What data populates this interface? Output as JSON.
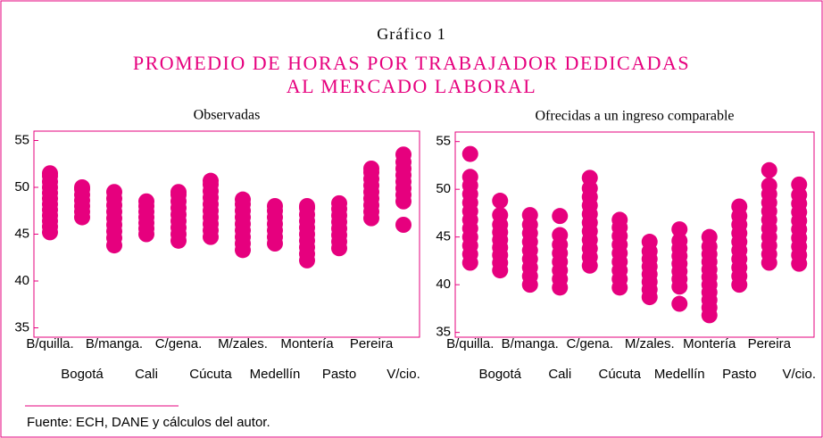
{
  "figure_label": "Gráfico 1",
  "title": [
    "PROMEDIO DE HORAS POR TRABAJADOR DEDICADAS",
    "AL MERCADO LABORAL"
  ],
  "source": "Fuente: ECH, DANE y cálculos del autor.",
  "chart_data": [
    {
      "type": "strip",
      "title": "Observadas",
      "color": "#e6007e",
      "categories": [
        "B/quilla.",
        "Bogotá",
        "B/manga.",
        "Cali",
        "C/gena.",
        "Cúcuta",
        "M/zales.",
        "Medellín",
        "Montería",
        "Pasto",
        "Pereira",
        "V/cio."
      ],
      "values": [
        [
          45.2,
          45.8,
          46.4,
          47,
          47.6,
          48.2,
          48.8,
          49.4,
          50,
          50.6,
          51.2,
          51.5
        ],
        [
          46.8,
          47.4,
          48,
          48.6,
          49.2,
          49.8,
          50
        ],
        [
          43.8,
          44.6,
          45.3,
          46,
          46.7,
          47.4,
          48.1,
          48.8,
          49.5
        ],
        [
          45,
          45.6,
          46.2,
          46.8,
          47.4,
          48,
          48.5
        ],
        [
          44.3,
          45,
          45.7,
          46.4,
          47.1,
          47.8,
          48.5,
          49.2,
          49.5
        ],
        [
          44.7,
          45.4,
          46.1,
          46.8,
          47.5,
          48.2,
          48.9,
          49.6,
          50.3,
          50.7
        ],
        [
          43.3,
          44,
          44.7,
          45.4,
          46.1,
          46.8,
          47.5,
          48.2,
          48.7
        ],
        [
          44,
          44.7,
          45.4,
          46.1,
          46.8,
          47.5,
          48
        ],
        [
          42.2,
          42.9,
          43.6,
          44.3,
          45,
          45.7,
          46.4,
          47.1,
          47.8,
          48
        ],
        [
          43.5,
          44.2,
          44.9,
          45.6,
          46.3,
          47,
          47.7,
          48.3
        ],
        [
          46.7,
          47.4,
          48.1,
          48.8,
          49.5,
          50.2,
          50.9,
          51.6,
          52
        ],
        [
          46,
          48.5,
          49.2,
          49.9,
          50.6,
          51.3,
          52,
          52.7,
          53.5
        ]
      ],
      "ylim": [
        34,
        56
      ],
      "yticks": [
        35,
        40,
        45,
        50,
        55
      ]
    },
    {
      "type": "strip",
      "title": "Ofrecidas a un ingreso comparable",
      "color": "#e6007e",
      "categories": [
        "B/quilla.",
        "Bogotá",
        "B/manga.",
        "Cali",
        "C/gena.",
        "Cúcuta",
        "M/zales.",
        "Medellín",
        "Montería",
        "Pasto",
        "Pereira",
        "V/cio."
      ],
      "values": [
        [
          42.3,
          43.2,
          44.1,
          45,
          45.9,
          46.8,
          47.7,
          48.6,
          49.5,
          50.4,
          51.3,
          53.7
        ],
        [
          41.5,
          42.3,
          43.1,
          43.9,
          44.7,
          45.5,
          46.3,
          47.3,
          48.8
        ],
        [
          40,
          40.9,
          41.8,
          42.7,
          43.6,
          44.5,
          45.4,
          46.3,
          47.3
        ],
        [
          39.7,
          40.6,
          41.5,
          42.4,
          43.3,
          44.2,
          45.2,
          47.2
        ],
        [
          42,
          42.9,
          43.8,
          44.7,
          45.6,
          46.5,
          47.4,
          48.3,
          49.2,
          50.1,
          51.2
        ],
        [
          39.7,
          40.6,
          41.5,
          42.4,
          43.3,
          44.2,
          45.1,
          46,
          46.8
        ],
        [
          38.7,
          39.5,
          40.3,
          41.1,
          41.9,
          42.7,
          43.5,
          44.5
        ],
        [
          38,
          39.8,
          40.6,
          41.4,
          42.2,
          43,
          43.8,
          44.6,
          45.8
        ],
        [
          36.8,
          37.6,
          38.4,
          39.2,
          40,
          40.8,
          41.6,
          42.4,
          43.2,
          44,
          45
        ],
        [
          40,
          40.9,
          41.8,
          42.7,
          43.6,
          44.5,
          45.4,
          46.3,
          47.2,
          48.2
        ],
        [
          42.3,
          43.2,
          44.1,
          45,
          45.9,
          46.8,
          47.7,
          48.6,
          49.5,
          50.4,
          52
        ],
        [
          42.2,
          43.1,
          44,
          44.9,
          45.8,
          46.7,
          47.6,
          48.5,
          49.4,
          50.5
        ]
      ],
      "ylim": [
        34.5,
        56
      ],
      "yticks": [
        35,
        40,
        45,
        50,
        55
      ]
    }
  ]
}
